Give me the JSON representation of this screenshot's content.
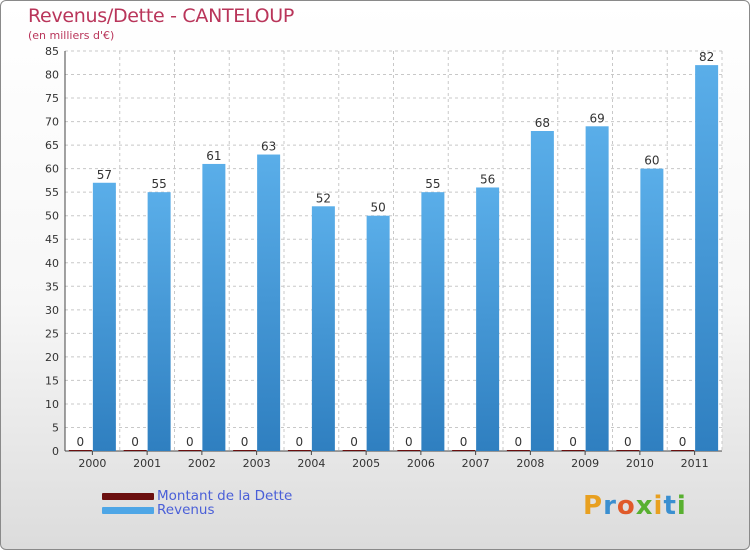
{
  "header": {
    "title": "Revenus/Dette - CANTELOUP",
    "subtitle": "(en milliers d'€)"
  },
  "chart_data": {
    "type": "bar",
    "title": "Revenus/Dette - CANTELOUP",
    "ylabel": "(en milliers d'€)",
    "xlabel": "",
    "categories": [
      "2000",
      "2001",
      "2002",
      "2003",
      "2004",
      "2005",
      "2006",
      "2007",
      "2008",
      "2009",
      "2010",
      "2011"
    ],
    "series": [
      {
        "name": "Montant de la Dette",
        "color": "#6b0f0f",
        "values": [
          0,
          0,
          0,
          0,
          0,
          0,
          0,
          0,
          0,
          0,
          0,
          0
        ]
      },
      {
        "name": "Revenus",
        "color": "#4ea6e6",
        "values": [
          57,
          55,
          61,
          63,
          52,
          50,
          55,
          56,
          68,
          69,
          60,
          82
        ]
      }
    ],
    "ylim": [
      0,
      85
    ],
    "yticks": [
      0,
      5,
      10,
      15,
      20,
      25,
      30,
      35,
      40,
      45,
      50,
      55,
      60,
      65,
      70,
      75,
      80,
      85
    ],
    "grid": true,
    "legend": "bottom-left"
  },
  "legend": {
    "items": [
      {
        "label": "Montant de la Dette",
        "color": "#6b0f0f"
      },
      {
        "label": "Revenus",
        "color": "#4ea6e6"
      }
    ]
  },
  "logo": {
    "letters": [
      "P",
      "r",
      "o",
      "x",
      "i",
      "t",
      "i"
    ],
    "colors": [
      "#e8a020",
      "#3a8fd0",
      "#e05a2a",
      "#58b030",
      "#e8a020",
      "#3a8fd0",
      "#58b030"
    ]
  }
}
